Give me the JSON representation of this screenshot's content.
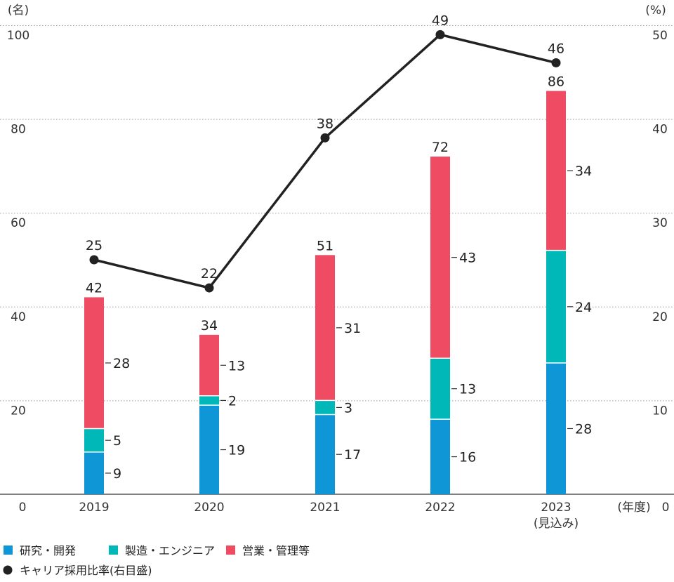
{
  "chart_data": {
    "type": "bar",
    "left_axis_unit": "(名)",
    "right_axis_unit": "(%)",
    "x_axis_unit": "(年度)",
    "categories": [
      "2019",
      "2020",
      "2021",
      "2022",
      "2023"
    ],
    "category_sublabels": [
      "",
      "",
      "",
      "",
      "(見込み)"
    ],
    "left_ticks": [
      "0",
      "20",
      "40",
      "60",
      "80",
      "100"
    ],
    "right_ticks": [
      "0",
      "10",
      "20",
      "30",
      "40",
      "50"
    ],
    "ylim_left": [
      0,
      100
    ],
    "ylim_right": [
      0,
      50
    ],
    "series": [
      {
        "name": "研究・開発",
        "color": "#0f96d6",
        "values": [
          9,
          19,
          17,
          16,
          28
        ]
      },
      {
        "name": "製造・エンジニア",
        "color": "#00b8b8",
        "values": [
          5,
          2,
          3,
          13,
          24
        ]
      },
      {
        "name": "営業・管理等",
        "color": "#ef4c64",
        "values": [
          28,
          13,
          31,
          43,
          34
        ]
      }
    ],
    "totals": [
      42,
      34,
      51,
      72,
      86
    ],
    "line": {
      "name": "キャリア採用比率(右目盛)",
      "color": "#222222",
      "values": [
        25,
        22,
        38,
        49,
        46
      ]
    },
    "grid": true,
    "legend_position": "bottom"
  }
}
